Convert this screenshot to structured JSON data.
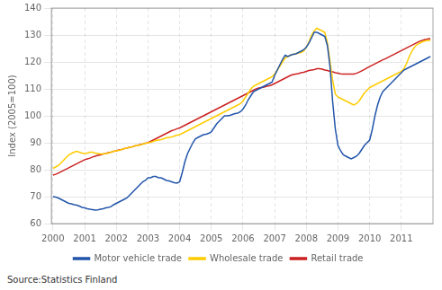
{
  "chart_data": {
    "type": "line",
    "ylabel": "Index (2005=100)",
    "annotations": [
      "Source:Statistics Finland"
    ],
    "xlim": [
      1999.95,
      2012.0
    ],
    "xticks": [
      2000,
      2001,
      2002,
      2003,
      2004,
      2005,
      2006,
      2007,
      2008,
      2009,
      2010,
      2011
    ],
    "ylim": [
      60,
      140
    ],
    "yticks": [
      60,
      70,
      80,
      90,
      100,
      110,
      120,
      130,
      140
    ],
    "grid": true,
    "legend": "bottom",
    "x": [
      2000,
      2000.0833333333333,
      2000.1666666666667,
      2000.25,
      2000.3333333333333,
      2000.4166666666667,
      2000.5,
      2000.5833333333333,
      2000.6666666666667,
      2000.75,
      2000.8333333333333,
      2000.9166666666667,
      2001,
      2001.0833333333333,
      2001.1666666666667,
      2001.25,
      2001.3333333333333,
      2001.4166666666667,
      2001.5,
      2001.5833333333333,
      2001.6666666666667,
      2001.75,
      2001.8333333333333,
      2001.9166666666667,
      2002,
      2002.0833333333333,
      2002.1666666666667,
      2002.25,
      2002.3333333333333,
      2002.4166666666667,
      2002.5,
      2002.5833333333333,
      2002.6666666666667,
      2002.75,
      2002.8333333333333,
      2002.9166666666667,
      2003,
      2003.0833333333333,
      2003.1666666666667,
      2003.25,
      2003.3333333333333,
      2003.4166666666667,
      2003.5,
      2003.5833333333333,
      2003.6666666666667,
      2003.75,
      2003.8333333333333,
      2003.9166666666667,
      2004,
      2004.0833333333333,
      2004.1666666666667,
      2004.25,
      2004.3333333333333,
      2004.4166666666667,
      2004.5,
      2004.5833333333333,
      2004.6666666666667,
      2004.75,
      2004.8333333333333,
      2004.9166666666667,
      2005,
      2005.0833333333333,
      2005.1666666666667,
      2005.25,
      2005.3333333333333,
      2005.4166666666667,
      2005.5,
      2005.5833333333333,
      2005.6666666666667,
      2005.75,
      2005.8333333333333,
      2005.9166666666667,
      2006,
      2006.0833333333333,
      2006.1666666666667,
      2006.25,
      2006.3333333333333,
      2006.4166666666667,
      2006.5,
      2006.5833333333333,
      2006.6666666666667,
      2006.75,
      2006.8333333333333,
      2006.9166666666667,
      2007,
      2007.0833333333333,
      2007.1666666666667,
      2007.25,
      2007.3333333333333,
      2007.4166666666667,
      2007.5,
      2007.5833333333333,
      2007.6666666666667,
      2007.75,
      2007.8333333333333,
      2007.9166666666667,
      2008,
      2008.0833333333333,
      2008.1666666666667,
      2008.25,
      2008.3333333333333,
      2008.4166666666667,
      2008.5,
      2008.5833333333333,
      2008.6666666666667,
      2008.75,
      2008.8333333333333,
      2008.9166666666667,
      2009,
      2009.0833333333333,
      2009.1666666666667,
      2009.25,
      2009.3333333333333,
      2009.4166666666667,
      2009.5,
      2009.5833333333333,
      2009.6666666666667,
      2009.75,
      2009.8333333333333,
      2009.9166666666667,
      2010,
      2010.0833333333333,
      2010.1666666666667,
      2010.25,
      2010.3333333333333,
      2010.4166666666667,
      2010.5,
      2010.5833333333333,
      2010.6666666666667,
      2010.75,
      2010.8333333333333,
      2010.9166666666667,
      2011,
      2011.0833333333333,
      2011.1666666666667,
      2011.25,
      2011.3333333333333,
      2011.4166666666667,
      2011.5,
      2011.5833333333333,
      2011.6666666666667,
      2011.75,
      2011.8333333333333,
      2011.9166666666667
    ],
    "series": [
      {
        "name": "Motor vehicle trade",
        "color": "#2255aa",
        "values": [
          70.0,
          69.8,
          69.5,
          69.0,
          68.5,
          68.0,
          67.5,
          67.3,
          67.0,
          66.8,
          66.5,
          66.0,
          65.8,
          65.5,
          65.3,
          65.2,
          65.0,
          65.1,
          65.3,
          65.5,
          65.8,
          66.0,
          66.3,
          67.0,
          67.5,
          68.0,
          68.5,
          69.0,
          69.5,
          70.5,
          71.5,
          72.5,
          73.5,
          74.5,
          75.5,
          76.0,
          77.0,
          77.0,
          77.5,
          77.5,
          77.0,
          77.0,
          76.5,
          76.0,
          75.8,
          75.5,
          75.2,
          75.0,
          75.5,
          79.0,
          83.0,
          86.0,
          88.0,
          90.0,
          91.5,
          92.0,
          92.5,
          93.0,
          93.2,
          93.5,
          94.0,
          95.5,
          97.0,
          98.0,
          99.0,
          100.0,
          100.0,
          100.2,
          100.5,
          100.8,
          101.0,
          101.5,
          102.5,
          104.0,
          106.0,
          107.5,
          109.0,
          109.5,
          110.0,
          110.5,
          111.0,
          111.5,
          112.0,
          112.5,
          115.0,
          117.0,
          119.0,
          121.0,
          122.5,
          122.0,
          122.5,
          122.8,
          123.0,
          123.5,
          124.0,
          124.5,
          125.5,
          127.0,
          129.0,
          131.0,
          131.0,
          130.5,
          130.0,
          129.5,
          126.0,
          118.0,
          105.0,
          95.0,
          89.0,
          87.0,
          85.5,
          85.0,
          84.5,
          84.0,
          84.5,
          85.0,
          86.0,
          87.5,
          89.0,
          90.0,
          91.0,
          95.0,
          100.0,
          104.0,
          107.0,
          109.0,
          110.0,
          111.0,
          112.0,
          113.0,
          114.0,
          115.0,
          116.0,
          117.0,
          117.5,
          118.0,
          118.5,
          119.0,
          119.5,
          120.0,
          120.5,
          121.0,
          121.5,
          122.0
        ]
      },
      {
        "name": "Wholesale trade",
        "color": "#ffcc00",
        "values": [
          80.5,
          81.0,
          81.5,
          82.5,
          83.5,
          84.5,
          85.5,
          86.0,
          86.5,
          86.8,
          86.5,
          86.2,
          86.0,
          86.2,
          86.5,
          86.5,
          86.2,
          86.0,
          85.8,
          85.8,
          86.0,
          86.2,
          86.5,
          86.8,
          87.0,
          87.2,
          87.5,
          87.8,
          88.0,
          88.3,
          88.5,
          88.8,
          89.0,
          89.2,
          89.5,
          89.8,
          90.0,
          90.2,
          90.5,
          90.8,
          91.0,
          91.2,
          91.5,
          91.8,
          92.0,
          92.2,
          92.5,
          92.8,
          93.0,
          93.5,
          94.0,
          94.5,
          95.0,
          95.5,
          96.0,
          96.5,
          97.0,
          97.5,
          98.0,
          98.5,
          99.0,
          99.5,
          100.0,
          100.5,
          101.0,
          101.5,
          102.0,
          102.5,
          103.0,
          103.5,
          104.0,
          104.5,
          105.5,
          107.0,
          108.5,
          110.0,
          111.0,
          111.5,
          112.0,
          112.5,
          113.0,
          113.5,
          114.0,
          114.5,
          115.5,
          117.0,
          118.5,
          120.0,
          121.5,
          122.0,
          122.5,
          122.8,
          123.0,
          123.3,
          123.5,
          124.0,
          125.5,
          127.5,
          130.0,
          131.5,
          132.5,
          132.0,
          131.5,
          131.0,
          127.0,
          120.0,
          113.0,
          108.0,
          107.0,
          106.5,
          106.0,
          105.5,
          105.0,
          104.5,
          104.0,
          104.5,
          105.5,
          107.0,
          108.5,
          109.5,
          110.5,
          111.0,
          111.5,
          112.0,
          112.5,
          113.0,
          113.5,
          114.0,
          114.5,
          115.0,
          115.5,
          116.0,
          116.5,
          117.5,
          119.5,
          122.0,
          124.0,
          125.5,
          126.5,
          127.0,
          127.5,
          127.8,
          128.0,
          128.0
        ]
      },
      {
        "name": "Retail trade",
        "color": "#cc2222",
        "values": [
          78.0,
          78.3,
          78.7,
          79.2,
          79.7,
          80.2,
          80.7,
          81.2,
          81.7,
          82.2,
          82.7,
          83.2,
          83.7,
          84.0,
          84.3,
          84.7,
          85.0,
          85.3,
          85.5,
          85.8,
          86.0,
          86.3,
          86.5,
          86.8,
          87.0,
          87.3,
          87.5,
          87.8,
          88.0,
          88.3,
          88.5,
          88.8,
          89.0,
          89.3,
          89.5,
          89.8,
          90.0,
          90.5,
          91.0,
          91.5,
          92.0,
          92.5,
          93.0,
          93.5,
          94.0,
          94.5,
          94.8,
          95.2,
          95.5,
          96.0,
          96.5,
          97.0,
          97.5,
          98.0,
          98.5,
          99.0,
          99.5,
          100.0,
          100.5,
          101.0,
          101.5,
          102.0,
          102.5,
          103.0,
          103.5,
          104.0,
          104.5,
          105.0,
          105.5,
          106.0,
          106.5,
          107.0,
          107.5,
          108.0,
          108.5,
          109.0,
          109.5,
          110.0,
          110.3,
          110.5,
          110.7,
          111.0,
          111.2,
          111.5,
          112.0,
          112.5,
          113.0,
          113.5,
          114.0,
          114.5,
          115.0,
          115.3,
          115.5,
          115.7,
          116.0,
          116.2,
          116.5,
          116.8,
          117.0,
          117.2,
          117.5,
          117.5,
          117.3,
          117.0,
          116.8,
          116.5,
          116.3,
          116.0,
          115.8,
          115.6,
          115.5,
          115.5,
          115.5,
          115.5,
          115.5,
          115.8,
          116.2,
          116.7,
          117.2,
          117.8,
          118.3,
          118.8,
          119.3,
          119.8,
          120.3,
          120.8,
          121.2,
          121.7,
          122.2,
          122.7,
          123.2,
          123.7,
          124.2,
          124.7,
          125.2,
          125.7,
          126.2,
          126.7,
          127.2,
          127.7,
          128.0,
          128.3,
          128.5,
          128.7
        ]
      }
    ]
  }
}
